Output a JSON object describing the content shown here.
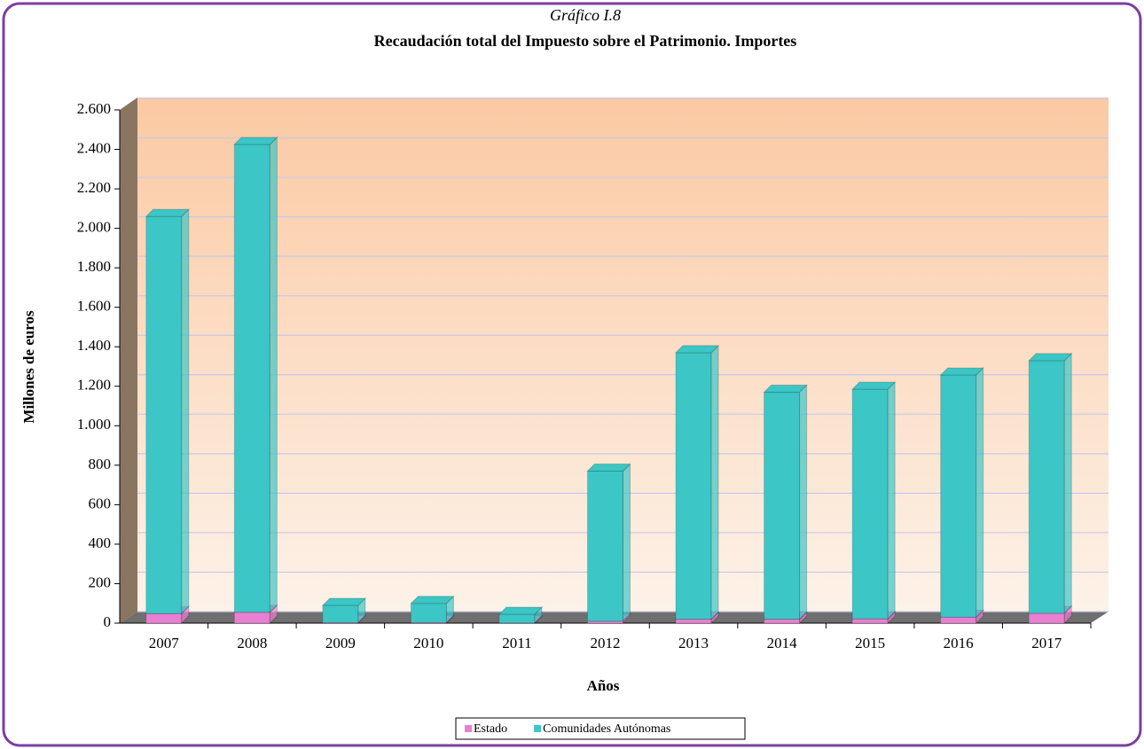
{
  "chart_data": {
    "type": "stacked-bar",
    "subtitle": "Gráfico I.8",
    "title": "Recaudación total del Impuesto sobre el Patrimonio. Importes",
    "y_label": "Millones de euros",
    "x_label": "Años",
    "categories": [
      "2007",
      "2008",
      "2009",
      "2010",
      "2011",
      "2012",
      "2013",
      "2014",
      "2015",
      "2016",
      "2017"
    ],
    "series": [
      {
        "name": "Estado",
        "color": "#e97fd2",
        "values": [
          48,
          55,
          3,
          3,
          1,
          10,
          20,
          20,
          22,
          30,
          50
        ]
      },
      {
        "name": "Comunidades Autónomas",
        "color": "#3cc6c6",
        "values": [
          2012,
          2370,
          87,
          97,
          44,
          760,
          1350,
          1150,
          1163,
          1227,
          1280
        ]
      }
    ],
    "ylim": [
      0,
      2600
    ],
    "yticks": [
      0,
      200,
      400,
      600,
      800,
      {
        "value": 1000,
        "label": "1.000"
      },
      {
        "value": 1200,
        "label": "1.200"
      },
      {
        "value": 1400,
        "label": "1.400"
      },
      {
        "value": 1600,
        "label": "1.600"
      },
      {
        "value": 1800,
        "label": "1.800"
      },
      {
        "value": 2000,
        "label": "2.000"
      },
      {
        "value": 2200,
        "label": "2.200"
      },
      {
        "value": 2400,
        "label": "2.400"
      },
      {
        "value": 2600,
        "label": "2.600"
      }
    ],
    "grid": true
  }
}
